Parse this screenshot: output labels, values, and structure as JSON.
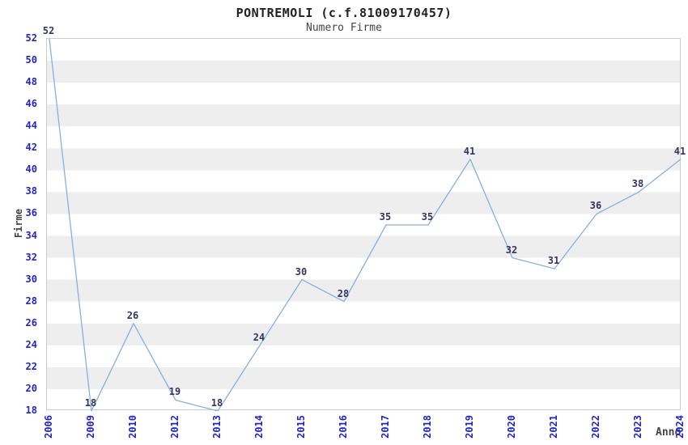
{
  "chart_data": {
    "type": "line",
    "title": "PONTREMOLI (c.f.81009170457)",
    "subtitle": "Numero Firme",
    "xlabel": "Anno",
    "ylabel": "Firme",
    "categories": [
      "2006",
      "2009",
      "2010",
      "2012",
      "2013",
      "2014",
      "2015",
      "2016",
      "2017",
      "2018",
      "2019",
      "2020",
      "2021",
      "2022",
      "2023",
      "2024"
    ],
    "values": [
      52,
      18,
      26,
      19,
      18,
      24,
      30,
      28,
      35,
      35,
      41,
      32,
      31,
      36,
      38,
      41
    ],
    "yticks": [
      18,
      20,
      22,
      24,
      26,
      28,
      30,
      32,
      34,
      36,
      38,
      40,
      42,
      44,
      46,
      48,
      50,
      52
    ],
    "ylim": [
      18,
      52
    ],
    "ytick_step": 2,
    "grid": "alternating-horizontal-bands",
    "legend": null,
    "colors": {
      "line": "#82b1e2",
      "tick_labels": "#2323cd",
      "point_labels": "#333366",
      "band": "#eeeeee",
      "plot_border": "#cccccc",
      "title": "#222222",
      "subtitle": "#444444",
      "axis_titles": "#444444",
      "background": "#ffffff"
    }
  }
}
